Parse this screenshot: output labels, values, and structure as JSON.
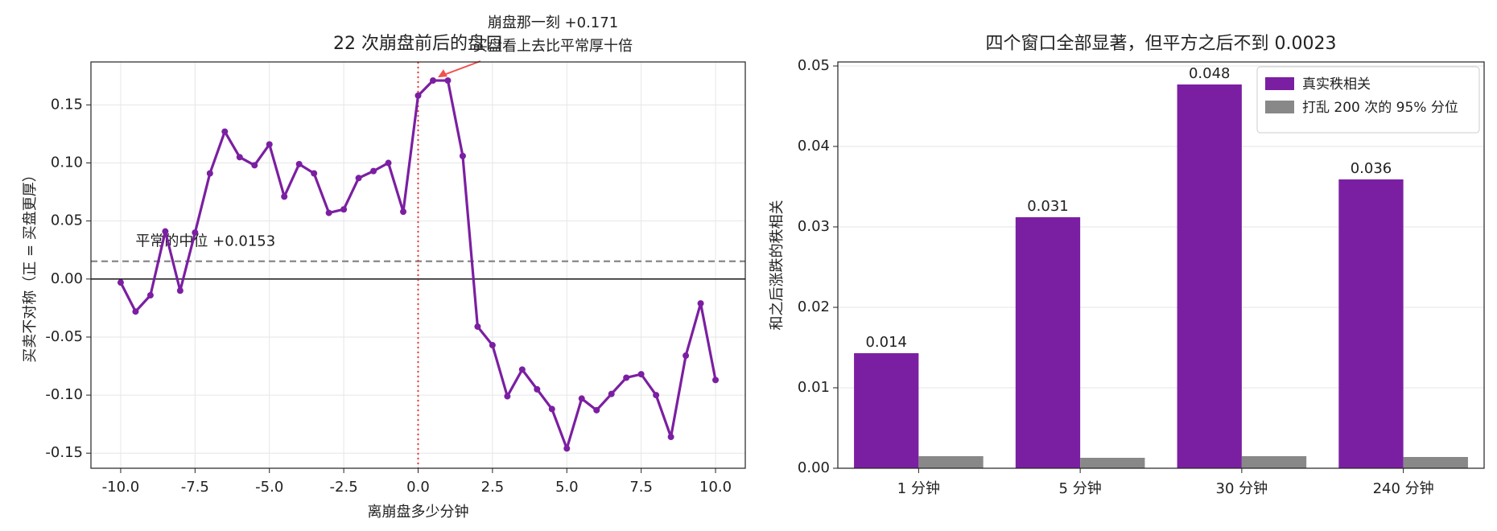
{
  "chart_data": [
    {
      "type": "line",
      "title": "22 次崩盘前后的盘口",
      "x_label": "离崩盘多少分钟",
      "y_label": "买卖不对称（正 = 买盘更厚）",
      "x": [
        -10,
        -9.5,
        -9,
        -8.5,
        -8,
        -7.5,
        -7,
        -6.5,
        -6,
        -5.5,
        -5,
        -4.5,
        -4,
        -3.5,
        -3,
        -2.5,
        -2,
        -1.5,
        -1,
        -0.5,
        0,
        0.5,
        1,
        1.5,
        2,
        2.5,
        3,
        3.5,
        4,
        4.5,
        5,
        5.5,
        6,
        6.5,
        7,
        7.5,
        8,
        8.5,
        9,
        9.5,
        10
      ],
      "series": [
        {
          "name": "盘口不对称",
          "color": "#7b1fa2",
          "values": [
            -0.003,
            -0.028,
            -0.014,
            0.041,
            -0.01,
            0.04,
            0.091,
            0.127,
            0.105,
            0.098,
            0.116,
            0.071,
            0.099,
            0.091,
            0.057,
            0.06,
            0.087,
            0.093,
            0.1,
            0.058,
            0.158,
            0.171,
            0.171,
            0.106,
            -0.041,
            -0.057,
            -0.101,
            -0.078,
            -0.095,
            -0.112,
            -0.146,
            -0.103,
            -0.113,
            -0.099,
            -0.085,
            -0.082,
            -0.1,
            -0.136,
            -0.066,
            -0.021,
            -0.087
          ]
        }
      ],
      "xlim": [
        -11,
        11
      ],
      "ylim": [
        -0.163,
        0.187
      ],
      "xticks": [
        {
          "value": -10,
          "label": "-10.0"
        },
        -7.5,
        {
          "value": -5,
          "label": "-5.0"
        },
        -2.5,
        {
          "value": 0,
          "label": "0.0"
        },
        2.5,
        {
          "value": 5,
          "label": "5.0"
        },
        7.5,
        {
          "value": 10,
          "label": "10.0"
        }
      ],
      "yticks": [
        {
          "value": -0.15,
          "label": "-0.15"
        },
        {
          "value": -0.1,
          "label": "-0.10"
        },
        {
          "value": -0.05,
          "label": "-0.05"
        },
        {
          "value": 0,
          "label": "0.00"
        },
        {
          "value": 0.05,
          "label": "0.05"
        },
        {
          "value": 0.1,
          "label": "0.10"
        },
        {
          "value": 0.15,
          "label": "0.15"
        }
      ],
      "grid": true,
      "median_line": {
        "value": 0.0153,
        "label": "平常的中位 +0.0153",
        "color": "#888888"
      },
      "event_line": {
        "value": 0,
        "color": "#e53935"
      },
      "annotation": {
        "lines": [
          "崩盘那一刻 +0.171",
          "买盘看上去比平常厚十倍"
        ],
        "x": 0.5,
        "y": 0.171,
        "color": "#ef5350"
      }
    },
    {
      "type": "bar",
      "title": "四个窗口全部显著，但平方之后不到 0.0023",
      "y_label": "和之后涨跌的秩相关",
      "categories": [
        "1 分钟",
        "5 分钟",
        "30 分钟",
        "240 分钟"
      ],
      "series": [
        {
          "name": "真实秩相关",
          "color": "#7b1fa2",
          "values": [
            0.0143,
            0.0312,
            0.0477,
            0.0359
          ],
          "value_labels": [
            "0.014",
            "0.031",
            "0.048",
            "0.036"
          ]
        },
        {
          "name": "打乱 200 次的 95% 分位",
          "color": "#888888",
          "values": [
            0.0015,
            0.0013,
            0.0015,
            0.0014
          ]
        }
      ],
      "ylim": [
        0,
        0.0505
      ],
      "yticks": [
        {
          "value": 0,
          "label": "0.00"
        },
        {
          "value": 0.01,
          "label": "0.01"
        },
        {
          "value": 0.02,
          "label": "0.02"
        },
        {
          "value": 0.03,
          "label": "0.03"
        },
        {
          "value": 0.04,
          "label": "0.04"
        },
        {
          "value": 0.05,
          "label": "0.05"
        }
      ],
      "grid": true,
      "legend": "upper right"
    }
  ]
}
